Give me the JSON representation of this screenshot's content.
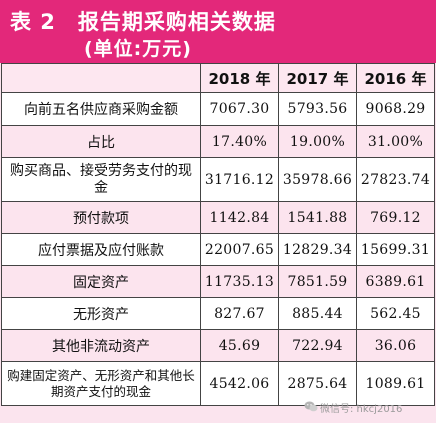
{
  "title": {
    "line1": "表 2　报告期采购相关数据",
    "line2": "(单位:万元)"
  },
  "table": {
    "headers": [
      "",
      "2018 年",
      "2017 年",
      "2016 年"
    ],
    "rows": [
      {
        "label": "向前五名供应商采购金额",
        "values": [
          "7067.30",
          "5793.56",
          "9068.29"
        ]
      },
      {
        "label": "占比",
        "values": [
          "17.40%",
          "19.00%",
          "31.00%"
        ]
      },
      {
        "label": "购买商品、接受劳务支付的现金",
        "values": [
          "31716.12",
          "35978.66",
          "27823.74"
        ]
      },
      {
        "label": "预付款项",
        "values": [
          "1142.84",
          "1541.88",
          "769.12"
        ]
      },
      {
        "label": "应付票据及应付账款",
        "values": [
          "22007.65",
          "12829.34",
          "15699.31"
        ]
      },
      {
        "label": "固定资产",
        "values": [
          "11735.13",
          "7851.59",
          "6389.61"
        ]
      },
      {
        "label": "无形资产",
        "values": [
          "827.67",
          "885.44",
          "562.45"
        ]
      },
      {
        "label": "其他非流动资产",
        "values": [
          "45.69",
          "722.94",
          "36.06"
        ]
      },
      {
        "label": "购建固定资产、无形资产和其他长期资产支付的现金",
        "values": [
          "4542.06",
          "2875.64",
          "1089.61"
        ]
      }
    ]
  },
  "watermark": {
    "text": "微信号: hkcj2016",
    "icon": "wechat-icon"
  }
}
